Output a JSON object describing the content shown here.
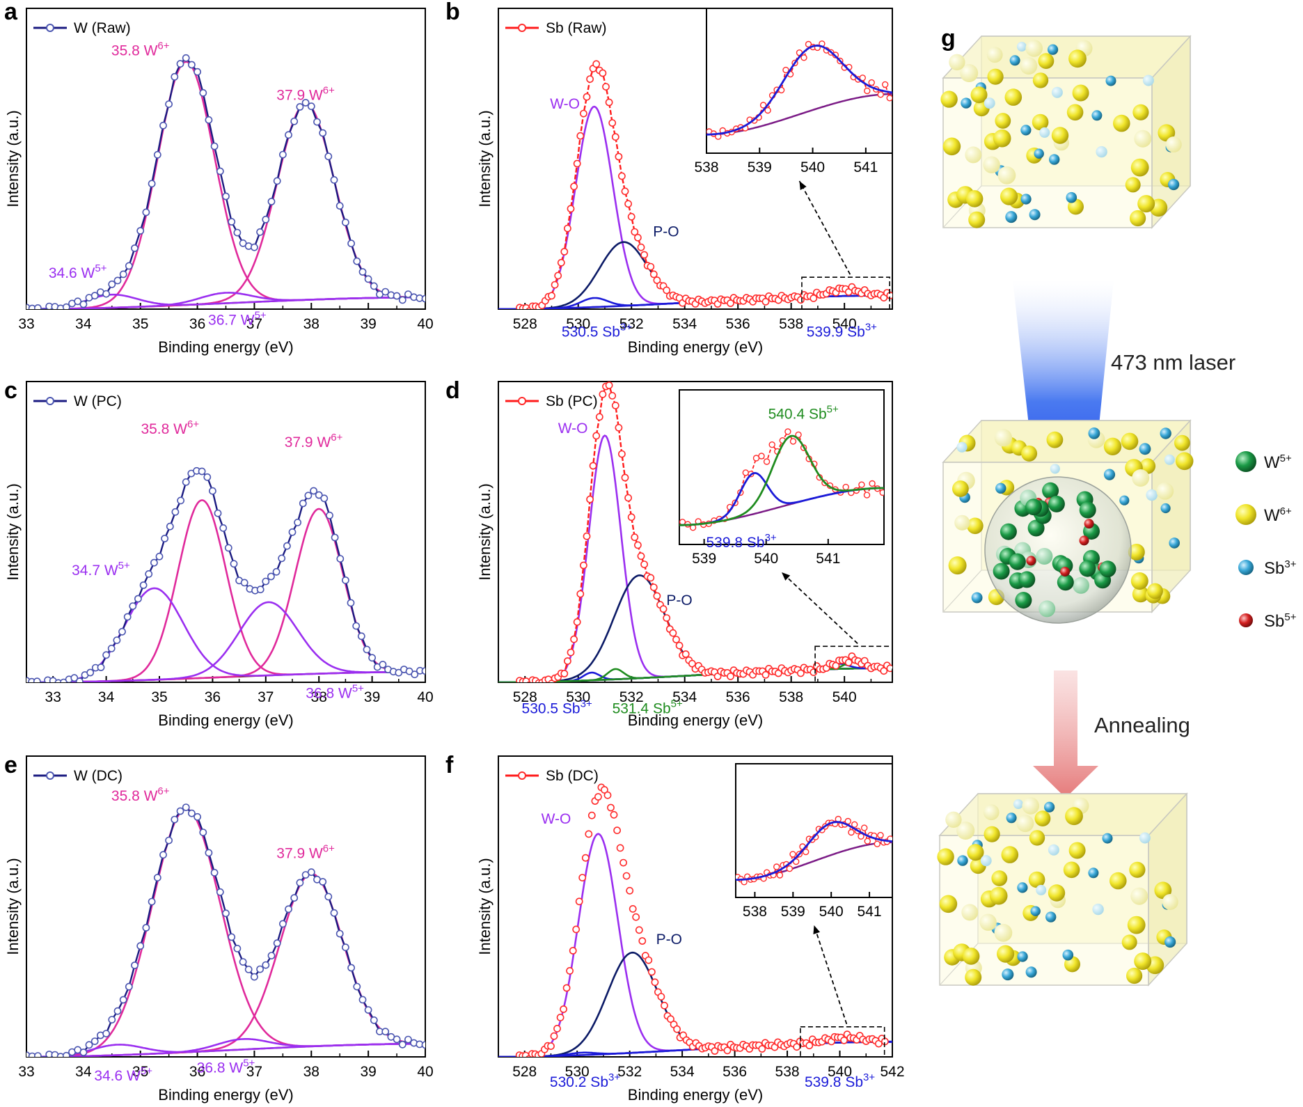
{
  "colors": {
    "w_raw_line": "#1a1a80",
    "w_marker": "#4a55b0",
    "sb_line": "#ff1a1a",
    "sb_marker": "#ff2a2a",
    "w6": "#e0299b",
    "w5": "#9a2ef0",
    "background": "#7a1628",
    "sb3": "#1a1ad8",
    "sb5": "#1f8c1f",
    "wo": "#9a2ef0",
    "po": "#0b1a66",
    "bg_sb": "#7b1b86",
    "w5_ball": "#1a9a46",
    "w6_ball": "#e8e21c",
    "sb3_ball": "#3aa8d8",
    "sb5_ball": "#d42020"
  },
  "chart_data": [
    {
      "id": "a",
      "letter": "a",
      "type": "line",
      "legend": "W (Raw)",
      "legend_color": "#1a1a80",
      "legend_marker": "#4a55b0",
      "xlabel": "Binding energy (eV)",
      "ylabel": "Intensity (a.u.)",
      "xlim": [
        33,
        40
      ],
      "ylim": [
        0,
        1.15
      ],
      "xticks": [
        "33",
        "34",
        "35",
        "36",
        "37",
        "38",
        "39",
        "40"
      ],
      "background": [
        0.0,
        0.045
      ],
      "peaks": [
        {
          "name": "W6+ 35.8",
          "center": 35.8,
          "height": 0.93,
          "sigma": 0.5,
          "color": "#e0299b"
        },
        {
          "name": "W6+ 37.9",
          "center": 37.9,
          "height": 0.75,
          "sigma": 0.5,
          "color": "#e0299b"
        },
        {
          "name": "W5+ 34.6",
          "center": 34.5,
          "height": 0.05,
          "sigma": 0.45,
          "color": "#9a2ef0"
        },
        {
          "name": "W5+ 36.7",
          "center": 36.5,
          "height": 0.04,
          "sigma": 0.45,
          "color": "#9a2ef0"
        }
      ],
      "raw": {
        "style": "circle",
        "color": "#4a55b0",
        "line": "#1a1a80",
        "xstart": 33,
        "xend": 40,
        "step": 0.1,
        "connect": true
      },
      "annotations": [
        {
          "base": "35.8 W",
          "sup": "6+",
          "color": "#e0299b",
          "x": 35.0,
          "y": 0.97,
          "anchor": "middle"
        },
        {
          "base": "37.9 W",
          "sup": "6+",
          "color": "#e0299b",
          "x": 37.9,
          "y": 0.8,
          "anchor": "middle"
        },
        {
          "base": "34.6 W",
          "sup": "5+",
          "color": "#9a2ef0",
          "x": 33.9,
          "y": 0.12,
          "anchor": "middle"
        },
        {
          "base": "36.7 W",
          "sup": "5+",
          "color": "#9a2ef0",
          "x": 36.7,
          "y": -0.06,
          "anchor": "middle"
        }
      ]
    },
    {
      "id": "b",
      "letter": "b",
      "type": "line",
      "legend": "Sb (Raw)",
      "legend_color": "#ff1a1a",
      "legend_marker": "#ff2a2a",
      "xlabel": "Binding energy (eV)",
      "ylabel": "Intensity (a.u.)",
      "xlim": [
        527,
        541.8
      ],
      "ylim": [
        0,
        1.32
      ],
      "xticks": [
        "528",
        "530",
        "532",
        "534",
        "536",
        "538",
        "540"
      ],
      "background": [
        0.0,
        0.06
      ],
      "peaks": [
        {
          "name": "W-O",
          "center": 530.6,
          "height": 0.88,
          "sigma": 0.7,
          "color": "#9a2ef0"
        },
        {
          "name": "P-O",
          "center": 531.7,
          "height": 0.28,
          "sigma": 0.9,
          "color": "#0b1a66"
        },
        {
          "name": "Sb3+ 530.5",
          "center": 530.6,
          "height": 0.04,
          "sigma": 0.5,
          "color": "#1a1ad8"
        },
        {
          "name": "Sb3+ 539.9",
          "center": 540.0,
          "height": 0.03,
          "sigma": 0.6,
          "color": "#1a1ad8"
        }
      ],
      "raw": {
        "style": "circle",
        "color": "#ff2a2a",
        "line": "#ff1a1a",
        "xstart": 527.8,
        "xend": 541.8,
        "step": 0.12,
        "connect": true
      },
      "annotations": [
        {
          "base": "W-O",
          "sup": "",
          "color": "#9a2ef0",
          "x": 529.5,
          "y": 0.88,
          "anchor": "middle"
        },
        {
          "base": "P-O",
          "sup": "",
          "color": "#0b1a66",
          "x": 533.3,
          "y": 0.32,
          "anchor": "middle"
        },
        {
          "base": "530.5 Sb",
          "sup": "3+",
          "color": "#1a1ad8",
          "x": 530.7,
          "y": -0.12,
          "anchor": "middle"
        },
        {
          "base": "539.9 Sb",
          "sup": "3+",
          "color": "#1a1ad8",
          "x": 539.9,
          "y": -0.12,
          "anchor": "middle"
        }
      ],
      "inset": {
        "xlim": [
          538,
          541.5
        ],
        "xticks": [
          "538",
          "539",
          "540",
          "541"
        ],
        "ylim": [
          0,
          1.0
        ],
        "bg": [
          0.1,
          0.45
        ],
        "peaks": [
          {
            "center": 540.0,
            "height": 0.55,
            "sigma": 0.55,
            "color": "#1a1ad8"
          }
        ],
        "zoom_x": [
          538.4,
          541.7
        ],
        "zoom_y": [
          0.0,
          0.14
        ]
      }
    },
    {
      "id": "c",
      "letter": "c",
      "type": "line",
      "legend": "W (PC)",
      "legend_color": "#1a1a80",
      "legend_marker": "#4a55b0",
      "xlabel": "Binding energy (eV)",
      "ylabel": "Intensity (a.u.)",
      "xlim": [
        32.5,
        40
      ],
      "ylim": [
        0,
        1.15
      ],
      "xticks": [
        "33",
        "34",
        "35",
        "36",
        "37",
        "38",
        "39",
        "40"
      ],
      "background": [
        0.0,
        0.04
      ],
      "peaks": [
        {
          "name": "W6+ 35.8",
          "center": 35.8,
          "height": 0.68,
          "sigma": 0.45,
          "color": "#e0299b"
        },
        {
          "name": "W6+ 37.9",
          "center": 38.0,
          "height": 0.63,
          "sigma": 0.45,
          "color": "#e0299b"
        },
        {
          "name": "W5+ 34.7",
          "center": 34.9,
          "height": 0.35,
          "sigma": 0.55,
          "color": "#9a2ef0"
        },
        {
          "name": "W5+ 36.8",
          "center": 37.05,
          "height": 0.28,
          "sigma": 0.55,
          "color": "#9a2ef0"
        }
      ],
      "raw": {
        "style": "circle",
        "color": "#4a55b0",
        "line": "#1a1a80",
        "xstart": 32.5,
        "xend": 40,
        "step": 0.1,
        "connect": true
      },
      "annotations": [
        {
          "base": "35.8 W",
          "sup": "6+",
          "color": "#e0299b",
          "x": 35.2,
          "y": 0.95,
          "anchor": "middle"
        },
        {
          "base": "37.9 W",
          "sup": "6+",
          "color": "#e0299b",
          "x": 37.9,
          "y": 0.9,
          "anchor": "middle"
        },
        {
          "base": "34.7 W",
          "sup": "5+",
          "color": "#9a2ef0",
          "x": 33.9,
          "y": 0.41,
          "anchor": "middle"
        },
        {
          "base": "36.8 W",
          "sup": "5+",
          "color": "#9a2ef0",
          "x": 38.3,
          "y": -0.06,
          "anchor": "middle"
        }
      ]
    },
    {
      "id": "d",
      "letter": "d",
      "type": "line",
      "legend": "Sb (PC)",
      "legend_color": "#ff1a1a",
      "legend_marker": "#ff2a2a",
      "xlabel": "Binding energy (eV)",
      "ylabel": "Intensity (a.u.)",
      "xlim": [
        527,
        541.8
      ],
      "ylim": [
        0,
        1.17
      ],
      "xticks": [
        "528",
        "530",
        "532",
        "534",
        "536",
        "538",
        "540"
      ],
      "background": [
        0.0,
        0.055
      ],
      "peaks": [
        {
          "name": "W-O",
          "center": 531.0,
          "height": 0.95,
          "sigma": 0.6,
          "color": "#9a2ef0"
        },
        {
          "name": "P-O",
          "center": 532.3,
          "height": 0.4,
          "sigma": 0.95,
          "color": "#0b1a66"
        },
        {
          "name": "Sb3+ 530.5",
          "center": 530.5,
          "height": 0.03,
          "sigma": 0.3,
          "color": "#1a1ad8"
        },
        {
          "name": "Sb5+ 531.4",
          "center": 531.4,
          "height": 0.04,
          "sigma": 0.3,
          "color": "#1f8c1f"
        },
        {
          "name": "Sb3+ 539.8",
          "center": 539.8,
          "height": 0.02,
          "sigma": 0.35,
          "color": "#1a1ad8"
        },
        {
          "name": "Sb5+ 540.4",
          "center": 540.4,
          "height": 0.03,
          "sigma": 0.35,
          "color": "#1f8c1f"
        }
      ],
      "raw": {
        "style": "circle",
        "color": "#ff2a2a",
        "line": "#ff1a1a",
        "xstart": 527.8,
        "xend": 541.8,
        "step": 0.12,
        "connect": true
      },
      "annotations": [
        {
          "base": "W-O",
          "sup": "",
          "color": "#9a2ef0",
          "x": 529.8,
          "y": 0.97,
          "anchor": "middle"
        },
        {
          "base": "P-O",
          "sup": "",
          "color": "#0b1a66",
          "x": 533.8,
          "y": 0.3,
          "anchor": "middle"
        },
        {
          "base": "530.5 Sb",
          "sup": "3+",
          "color": "#1a1ad8",
          "x": 529.2,
          "y": -0.12,
          "anchor": "middle"
        },
        {
          "base": "531.4 Sb",
          "sup": "5+",
          "color": "#1f8c1f",
          "x": 532.6,
          "y": -0.12,
          "anchor": "middle"
        }
      ],
      "inset": {
        "xlim": [
          538.6,
          541.9
        ],
        "xticks": [
          "539",
          "540",
          "541"
        ],
        "ylim": [
          0,
          1.0
        ],
        "bg": [
          0.1,
          0.4
        ],
        "peaks": [
          {
            "center": 539.8,
            "height": 0.33,
            "sigma": 0.22,
            "color": "#1a1ad8"
          },
          {
            "center": 540.4,
            "height": 0.55,
            "sigma": 0.3,
            "color": "#1f8c1f"
          }
        ],
        "zoom_x": [
          538.9,
          541.8
        ],
        "zoom_y": [
          0.0,
          0.14
        ],
        "labels": [
          {
            "base": "540.4 Sb",
            "sup": "5+",
            "color": "#1f8c1f",
            "x": 540.6,
            "y": 0.96
          },
          {
            "base": "539.8 Sb",
            "sup": "3+",
            "color": "#1a1ad8",
            "x": 539.6,
            "y": -0.08
          }
        ]
      }
    },
    {
      "id": "e",
      "letter": "e",
      "type": "line",
      "legend": "W (DC)",
      "legend_color": "#1a1a80",
      "legend_marker": "#4a55b0",
      "xlabel": "Binding energy (eV)",
      "ylabel": "Intensity (a.u.)",
      "xlim": [
        33,
        40
      ],
      "ylim": [
        0,
        1.15
      ],
      "xticks": [
        "33",
        "34",
        "35",
        "36",
        "37",
        "38",
        "39",
        "40"
      ],
      "background": [
        0.0,
        0.05
      ],
      "peaks": [
        {
          "name": "W6+ 35.8",
          "center": 35.8,
          "height": 0.93,
          "sigma": 0.6,
          "color": "#e0299b"
        },
        {
          "name": "W6+ 37.9",
          "center": 38.0,
          "height": 0.66,
          "sigma": 0.55,
          "color": "#e0299b"
        },
        {
          "name": "W5+ 34.6",
          "center": 34.6,
          "height": 0.04,
          "sigma": 0.45,
          "color": "#9a2ef0"
        },
        {
          "name": "W5+ 36.8",
          "center": 36.8,
          "height": 0.04,
          "sigma": 0.45,
          "color": "#9a2ef0"
        }
      ],
      "raw": {
        "style": "circle",
        "color": "#4a55b0",
        "line": "#1a1a80",
        "xstart": 33,
        "xend": 40,
        "step": 0.1,
        "connect": true
      },
      "annotations": [
        {
          "base": "35.8 W",
          "sup": "6+",
          "color": "#e0299b",
          "x": 35.0,
          "y": 0.98,
          "anchor": "middle"
        },
        {
          "base": "37.9 W",
          "sup": "6+",
          "color": "#e0299b",
          "x": 37.9,
          "y": 0.76,
          "anchor": "middle"
        },
        {
          "base": "34.6 W",
          "sup": "5+",
          "color": "#9a2ef0",
          "x": 34.7,
          "y": -0.09,
          "anchor": "middle"
        },
        {
          "base": "36.8 W",
          "sup": "5+",
          "color": "#9a2ef0",
          "x": 36.5,
          "y": -0.06,
          "anchor": "middle"
        }
      ]
    },
    {
      "id": "f",
      "letter": "f",
      "type": "line",
      "legend": "Sb (DC)",
      "legend_color": "#ff1a1a",
      "legend_marker": "#ff2a2a",
      "xlabel": "Binding energy (eV)",
      "ylabel": "Intensity (a.u.)",
      "xlim": [
        527,
        542
      ],
      "ylim": [
        0,
        1.2
      ],
      "xticks": [
        "528",
        "530",
        "532",
        "534",
        "536",
        "538",
        "540",
        "542"
      ],
      "background": [
        0.0,
        0.06
      ],
      "peaks": [
        {
          "name": "W-O",
          "center": 530.8,
          "height": 0.88,
          "sigma": 0.75,
          "color": "#9a2ef0"
        },
        {
          "name": "P-O",
          "center": 532.1,
          "height": 0.4,
          "sigma": 0.95,
          "color": "#0b1a66"
        },
        {
          "name": "Sb3+ 530.2",
          "center": 530.2,
          "height": 0.01,
          "sigma": 0.5,
          "color": "#1a1ad8"
        },
        {
          "name": "Sb3+ 539.8",
          "center": 540.2,
          "height": 0.02,
          "sigma": 0.7,
          "color": "#1a1ad8"
        }
      ],
      "raw": {
        "style": "circle",
        "color": "#ff2a2a",
        "line": "#ff1a1a",
        "xstart": 527.8,
        "xend": 541.8,
        "step": 0.12,
        "connect": false
      },
      "annotations": [
        {
          "base": "W-O",
          "sup": "",
          "color": "#9a2ef0",
          "x": 529.2,
          "y": 0.93,
          "anchor": "middle"
        },
        {
          "base": "P-O",
          "sup": "",
          "color": "#0b1a66",
          "x": 533.5,
          "y": 0.45,
          "anchor": "middle"
        },
        {
          "base": "530.2 Sb",
          "sup": "3+",
          "color": "#1a1ad8",
          "x": 530.3,
          "y": -0.12,
          "anchor": "middle"
        },
        {
          "base": "539.8 Sb",
          "sup": "3+",
          "color": "#1a1ad8",
          "x": 540.0,
          "y": -0.12,
          "anchor": "middle"
        }
      ],
      "inset": {
        "xlim": [
          537.5,
          541.6
        ],
        "xticks": [
          "538",
          "539",
          "540",
          "541"
        ],
        "ylim": [
          0,
          1.0
        ],
        "bg": [
          0.1,
          0.45
        ],
        "peaks": [
          {
            "center": 540.0,
            "height": 0.3,
            "sigma": 0.6,
            "color": "#1a1ad8"
          }
        ],
        "zoom_x": [
          538.5,
          541.7
        ],
        "zoom_y": [
          0.0,
          0.12
        ]
      }
    }
  ],
  "schematic": {
    "letter": "g",
    "laser_label": "473 nm laser",
    "annealing_label": "Annealing",
    "legend": [
      {
        "base": "W",
        "sup": "5+",
        "color": "#1a9a46"
      },
      {
        "base": "W",
        "sup": "6+",
        "color": "#e8e21c"
      },
      {
        "base": "Sb",
        "sup": "3+",
        "color": "#3aa8d8"
      },
      {
        "base": "Sb",
        "sup": "5+",
        "color": "#d42020"
      }
    ]
  }
}
